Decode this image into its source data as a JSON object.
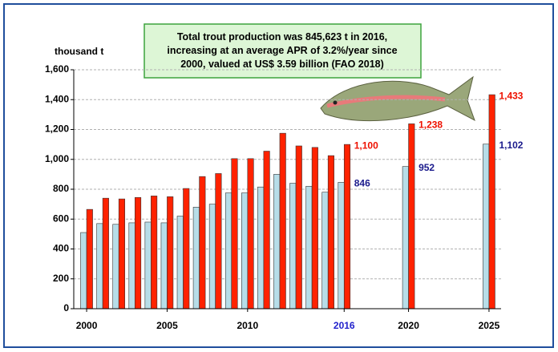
{
  "chart_data": {
    "type": "bar",
    "title": "Total trout production was 845,623 t in 2016, increasing at an average APR of 3.2%/year since 2000, valued at US$ 3.59 billion (FAO 2018)",
    "y_label": "thousand t",
    "x": [
      2000,
      2001,
      2002,
      2003,
      2004,
      2005,
      2006,
      2007,
      2008,
      2009,
      2010,
      2011,
      2012,
      2013,
      2014,
      2015,
      2016,
      2020,
      2025
    ],
    "series": [
      {
        "color": "#b7dde8",
        "values": [
          510,
          570,
          565,
          575,
          580,
          575,
          620,
          680,
          700,
          775,
          775,
          815,
          900,
          840,
          820,
          780,
          846,
          952,
          1102
        ],
        "value_labels": [
          null,
          null,
          null,
          null,
          null,
          null,
          null,
          null,
          null,
          null,
          null,
          null,
          null,
          null,
          null,
          null,
          "846",
          "952",
          "1,102"
        ],
        "label_color": "#1a1a8c"
      },
      {
        "color": "#ff2200",
        "values": [
          665,
          740,
          735,
          745,
          755,
          750,
          805,
          885,
          905,
          1005,
          1005,
          1055,
          1175,
          1090,
          1080,
          1025,
          1100,
          1238,
          1433
        ],
        "value_labels": [
          null,
          null,
          null,
          null,
          null,
          null,
          null,
          null,
          null,
          null,
          null,
          null,
          null,
          null,
          null,
          null,
          "1,100",
          "1,238",
          "1,433"
        ],
        "label_color": "#ee1100"
      }
    ],
    "xlim": [
      1999.2,
      2025.75
    ],
    "xticks": [
      2000,
      2005,
      2010,
      2016,
      2020,
      2025
    ],
    "xtick_colors": [
      "#000000",
      "#000000",
      "#000000",
      "#2222cc",
      "#000000",
      "#000000"
    ],
    "ylim": [
      0,
      1600
    ],
    "yticks": [
      0,
      {
        "value": 200,
        "label": "200"
      },
      {
        "value": 400,
        "label": "400"
      },
      {
        "value": 600,
        "label": "600"
      },
      {
        "value": 800,
        "label": "800"
      },
      {
        "value": 1000,
        "label": "1,000"
      },
      {
        "value": 1200,
        "label": "1,200"
      },
      {
        "value": 1400,
        "label": "1,400"
      },
      {
        "value": 1600,
        "label": "1,600"
      }
    ],
    "grid": true
  }
}
